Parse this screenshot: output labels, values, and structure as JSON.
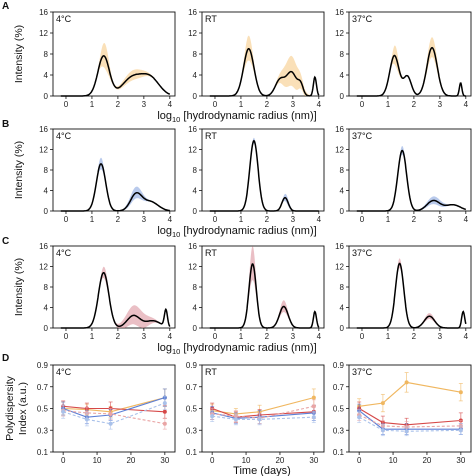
{
  "colors": {
    "A": "#f5c77e",
    "B": "#7f9fdc",
    "C": "#d98a96",
    "orange": "#f0b760",
    "red": "#d64848",
    "blue": "#5c7fd6",
    "pink": "#e9a5a5",
    "lightblue": "#a9c1ea",
    "curve": "#000000"
  },
  "xlabel_prefix": "log",
  "xlabel_sub": "10",
  "xlabel_rest": " [hydrodynamic radius (nm)]",
  "ylabel_size": "Intensity (%)",
  "ylabel_pdi_1": "Polydispersity",
  "ylabel_pdi_2": "Index (a.u.)",
  "xlabel_time": "Time (days)",
  "conditions": [
    "4°C",
    "RT",
    "37°C"
  ],
  "chart_data": [
    {
      "panel": "A",
      "type": "line",
      "xlim": [
        -0.5,
        4.2
      ],
      "ylim": [
        0,
        16
      ],
      "xticks": [
        0,
        1,
        2,
        3,
        4
      ],
      "yticks": [
        0,
        4,
        8,
        12,
        16
      ],
      "subplots": [
        {
          "condition": "4°C",
          "peaks": [
            [
              1.45,
              7.6,
              0.22
            ],
            [
              2.55,
              3.4,
              0.38
            ],
            [
              3.25,
              3.3,
              0.35
            ]
          ],
          "band": [
            [
              1.5,
              2.5,
              0.15
            ],
            [
              2.6,
              1.0,
              0.4
            ]
          ]
        },
        {
          "condition": "RT",
          "peaks": [
            [
              1.3,
              9.0,
              0.2
            ],
            [
              2.5,
              3.0,
              0.18
            ],
            [
              2.95,
              4.5,
              0.2
            ],
            [
              3.3,
              1.8,
              0.1
            ],
            [
              3.85,
              3.6,
              0.06
            ]
          ],
          "band": [
            [
              1.3,
              2.5,
              0.15
            ],
            [
              2.95,
              3.0,
              0.3
            ]
          ]
        },
        {
          "condition": "37°C",
          "peaks": [
            [
              1.25,
              7.7,
              0.18
            ],
            [
              1.75,
              3.7,
              0.15
            ],
            [
              2.7,
              9.2,
              0.2
            ],
            [
              3.8,
              2.5,
              0.05
            ]
          ],
          "band": [
            [
              1.3,
              2.0,
              0.12
            ],
            [
              2.7,
              2.0,
              0.2
            ]
          ]
        }
      ]
    },
    {
      "panel": "B",
      "type": "line",
      "xlim": [
        -0.5,
        4.2
      ],
      "ylim": [
        0,
        16
      ],
      "xticks": [
        0,
        1,
        2,
        3,
        4
      ],
      "yticks": [
        0,
        4,
        8,
        12,
        16
      ],
      "subplots": [
        {
          "condition": "4°C",
          "peaks": [
            [
              1.35,
              9.2,
              0.18
            ],
            [
              2.7,
              3.2,
              0.22
            ],
            [
              3.25,
              1.8,
              0.3
            ]
          ],
          "band": [
            [
              1.35,
              1.2,
              0.12
            ],
            [
              2.7,
              1.2,
              0.25
            ]
          ]
        },
        {
          "condition": "RT",
          "peaks": [
            [
              1.5,
              13.7,
              0.16
            ],
            [
              2.7,
              2.6,
              0.12
            ]
          ],
          "band": [
            [
              1.5,
              0.6,
              0.1
            ],
            [
              2.75,
              0.8,
              0.12
            ]
          ]
        },
        {
          "condition": "37°C",
          "peaks": [
            [
              1.55,
              11.8,
              0.17
            ],
            [
              2.75,
              2.0,
              0.25
            ],
            [
              3.5,
              1.2,
              0.3
            ]
          ],
          "band": [
            [
              1.55,
              0.9,
              0.12
            ],
            [
              2.8,
              0.8,
              0.3
            ]
          ]
        }
      ]
    },
    {
      "panel": "C",
      "type": "line",
      "xlim": [
        -0.5,
        4.2
      ],
      "ylim": [
        0,
        16
      ],
      "xticks": [
        0,
        1,
        2,
        3,
        4
      ],
      "yticks": [
        0,
        4,
        8,
        12,
        16
      ],
      "subplots": [
        {
          "condition": "4°C",
          "peaks": [
            [
              1.45,
              10.8,
              0.2
            ],
            [
              2.6,
              2.4,
              0.25
            ],
            [
              3.35,
              1.4,
              0.3
            ],
            [
              3.85,
              3.3,
              0.06
            ]
          ],
          "band": [
            [
              1.5,
              1.2,
              0.15
            ],
            [
              2.7,
              2.0,
              0.4
            ]
          ]
        },
        {
          "condition": "RT",
          "peaks": [
            [
              1.45,
              12.5,
              0.14
            ],
            [
              2.65,
              4.2,
              0.17
            ],
            [
              3.85,
              3.2,
              0.06
            ]
          ],
          "band": [
            [
              1.45,
              3.5,
              0.12
            ],
            [
              2.65,
              1.2,
              0.15
            ]
          ]
        },
        {
          "condition": "37°C",
          "peaks": [
            [
              1.45,
              12.6,
              0.16
            ],
            [
              2.6,
              2.3,
              0.2
            ],
            [
              3.9,
              3.2,
              0.06
            ]
          ],
          "band": [
            [
              1.45,
              1.0,
              0.12
            ],
            [
              2.6,
              0.6,
              0.2
            ]
          ]
        }
      ]
    },
    {
      "panel": "D",
      "type": "line",
      "xlim": [
        -3,
        33
      ],
      "ylim": [
        0.1,
        0.9
      ],
      "xticks": [
        0,
        10,
        20,
        30
      ],
      "yticks": [
        0.1,
        0.3,
        0.5,
        0.7,
        0.9
      ],
      "subplots": [
        {
          "condition": "4°C",
          "series": [
            {
              "color": "orange",
              "x": [
                0,
                7,
                14,
                30
              ],
              "y": [
                0.5,
                0.49,
                0.47,
                0.6
              ],
              "err": [
                0.06,
                0.05,
                0.05,
                0.08
              ]
            },
            {
              "color": "red",
              "x": [
                0,
                7,
                14,
                30
              ],
              "y": [
                0.52,
                0.5,
                0.5,
                0.47
              ],
              "err": [
                0.05,
                0.05,
                0.06,
                0.06
              ]
            },
            {
              "color": "blue",
              "x": [
                0,
                7,
                14,
                30
              ],
              "y": [
                0.5,
                0.42,
                0.44,
                0.6
              ],
              "err": [
                0.06,
                0.06,
                0.05,
                0.08
              ]
            },
            {
              "color": "pink",
              "x": [
                0,
                7,
                14,
                30
              ],
              "y": [
                0.48,
                0.46,
                0.45,
                0.36
              ],
              "err": [
                0.05,
                0.05,
                0.05,
                0.05
              ]
            },
            {
              "color": "lightblue",
              "x": [
                0,
                7,
                14,
                30
              ],
              "y": [
                0.47,
                0.4,
                0.36,
                0.55
              ],
              "err": [
                0.06,
                0.06,
                0.05,
                0.06
              ]
            }
          ]
        },
        {
          "condition": "RT",
          "series": [
            {
              "color": "orange",
              "x": [
                0,
                7,
                14,
                30
              ],
              "y": [
                0.48,
                0.45,
                0.47,
                0.6
              ],
              "err": [
                0.06,
                0.05,
                0.06,
                0.08
              ]
            },
            {
              "color": "red",
              "x": [
                0,
                7,
                14,
                30
              ],
              "y": [
                0.5,
                0.42,
                0.44,
                0.47
              ],
              "err": [
                0.05,
                0.05,
                0.05,
                0.06
              ]
            },
            {
              "color": "blue",
              "x": [
                0,
                7,
                14,
                30
              ],
              "y": [
                0.46,
                0.41,
                0.42,
                0.46
              ],
              "err": [
                0.06,
                0.05,
                0.06,
                0.07
              ]
            },
            {
              "color": "pink",
              "x": [
                0,
                7,
                14,
                30
              ],
              "y": [
                0.45,
                0.43,
                0.41,
                0.52
              ],
              "err": [
                0.05,
                0.05,
                0.05,
                0.06
              ]
            },
            {
              "color": "lightblue",
              "x": [
                0,
                7,
                14,
                30
              ],
              "y": [
                0.43,
                0.4,
                0.4,
                0.42
              ],
              "err": [
                0.05,
                0.05,
                0.05,
                0.05
              ]
            }
          ]
        },
        {
          "condition": "37°C",
          "series": [
            {
              "color": "orange",
              "x": [
                0,
                7,
                14,
                30
              ],
              "y": [
                0.52,
                0.55,
                0.74,
                0.65
              ],
              "err": [
                0.07,
                0.08,
                0.09,
                0.08
              ]
            },
            {
              "color": "red",
              "x": [
                0,
                7,
                14,
                30
              ],
              "y": [
                0.5,
                0.37,
                0.35,
                0.39
              ],
              "err": [
                0.06,
                0.06,
                0.06,
                0.07
              ]
            },
            {
              "color": "blue",
              "x": [
                0,
                7,
                14,
                30
              ],
              "y": [
                0.48,
                0.31,
                0.31,
                0.31
              ],
              "err": [
                0.06,
                0.05,
                0.05,
                0.05
              ]
            },
            {
              "color": "pink",
              "x": [
                0,
                7,
                14,
                30
              ],
              "y": [
                0.44,
                0.34,
                0.33,
                0.34
              ],
              "err": [
                0.05,
                0.05,
                0.05,
                0.05
              ]
            },
            {
              "color": "lightblue",
              "x": [
                0,
                7,
                14,
                30
              ],
              "y": [
                0.42,
                0.3,
                0.29,
                0.3
              ],
              "err": [
                0.05,
                0.05,
                0.04,
                0.04
              ]
            }
          ]
        }
      ]
    }
  ]
}
